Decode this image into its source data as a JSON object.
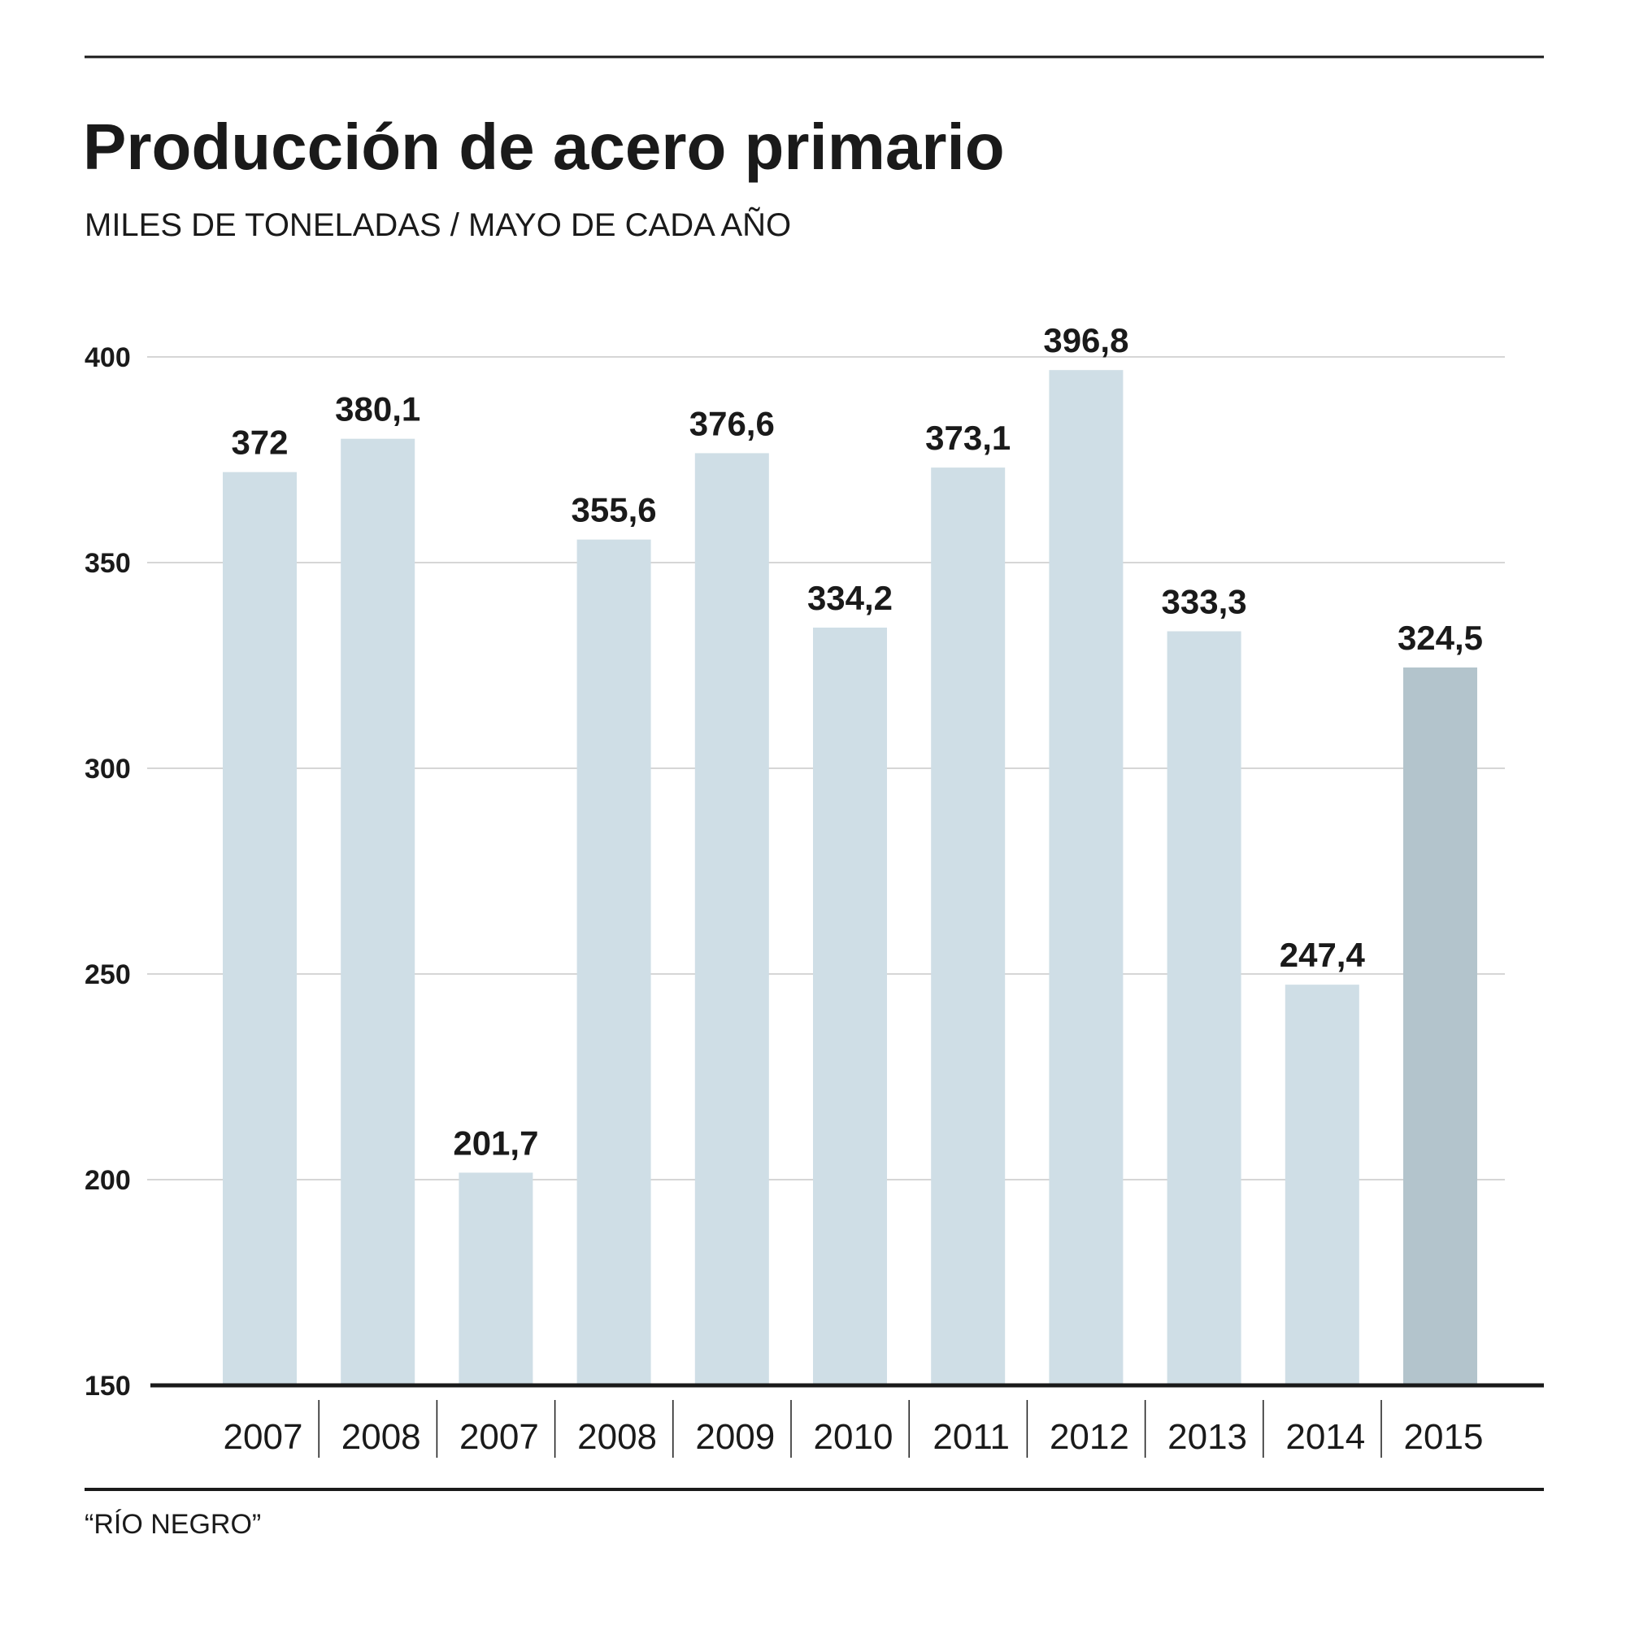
{
  "chart_data": {
    "type": "bar",
    "title": "Producción de acero primario",
    "subtitle": "MILES DE TONELADAS / MAYO DE CADA AÑO",
    "categories": [
      "2007",
      "2008",
      "2007",
      "2008",
      "2009",
      "2010",
      "2011",
      "2012",
      "2013",
      "2014",
      "2015"
    ],
    "values": [
      372,
      380.1,
      201.7,
      355.6,
      376.6,
      334.2,
      373.1,
      396.8,
      333.3,
      247.4,
      324.5
    ],
    "value_labels": [
      "372",
      "380,1",
      "201,7",
      "355,6",
      "376,6",
      "334,2",
      "373,1",
      "396,8",
      "333,3",
      "247,4",
      "324,5"
    ],
    "highlight_index": 10,
    "ylim": [
      150,
      400
    ],
    "yticks": [
      "400",
      "350",
      "300",
      "250",
      "200",
      "150"
    ],
    "ytick_values": [
      400,
      350,
      300,
      250,
      200,
      150
    ],
    "grid": true,
    "xlabel": "",
    "ylabel": "",
    "source": "“RÍO NEGRO”",
    "colors": {
      "bar": "#cfdee6",
      "highlight": "#b3c4cc",
      "grid": "#c8c8c8",
      "text": "#1a1a1a"
    }
  }
}
